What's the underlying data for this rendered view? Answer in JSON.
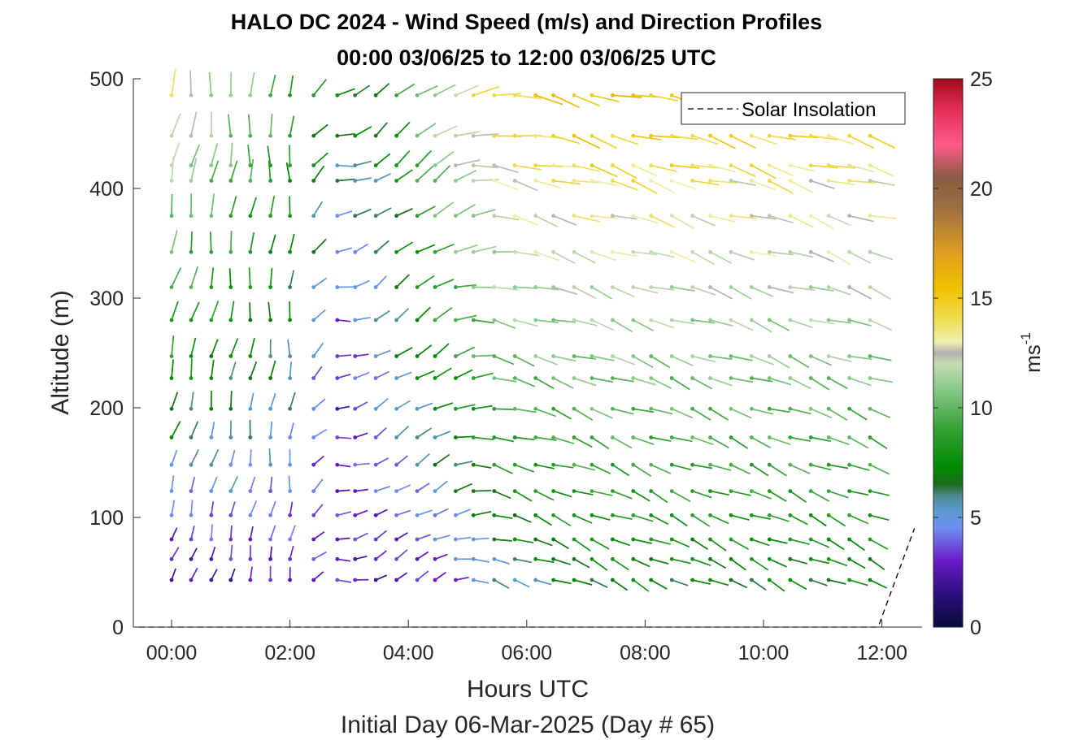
{
  "chart_data": {
    "type": "wind-barb-profile",
    "title": "HALO DC 2024 - Wind Speed (m/s) and Direction Profiles",
    "subtitle": "00:00 03/06/25 to 12:00 03/06/25  UTC",
    "xlabel": "Hours UTC",
    "xlabel2": "Initial Day 06-Mar-2025 (Day # 65)",
    "ylabel": "Altitude (m)",
    "xlim_hours": [
      -0.55,
      12.55
    ],
    "ylim": [
      0,
      500
    ],
    "x_ticks": [
      {
        "hour": 0,
        "label": "00:00"
      },
      {
        "hour": 2,
        "label": "02:00"
      },
      {
        "hour": 4,
        "label": "04:00"
      },
      {
        "hour": 6,
        "label": "06:00"
      },
      {
        "hour": 8,
        "label": "08:00"
      },
      {
        "hour": 10,
        "label": "10:00"
      },
      {
        "hour": 12,
        "label": "12:00"
      }
    ],
    "y_ticks": [
      0,
      100,
      200,
      300,
      400,
      500
    ],
    "colorbar": {
      "label": "ms",
      "label_superscript": "-1",
      "range": [
        0,
        25
      ],
      "ticks": [
        0,
        5,
        10,
        15,
        20,
        25
      ]
    },
    "legend": {
      "position": "top-right",
      "entries": [
        "Solar Insolation"
      ]
    },
    "solar_insolation": {
      "x": [
        -0.55,
        11.9,
        11.95,
        12.55
      ],
      "y": [
        0,
        0,
        2,
        90
      ]
    },
    "barb_levels_m": [
      43,
      62,
      80,
      102,
      124,
      148,
      173,
      199,
      227,
      247,
      280,
      310,
      342,
      375,
      407,
      421,
      448,
      485
    ],
    "sample_times_h": [
      0,
      0.33,
      0.67,
      1.0,
      1.33,
      1.67,
      2.0,
      2.4,
      2.8,
      3.1,
      3.45,
      3.8,
      4.15,
      4.45,
      4.8,
      5.1,
      5.45,
      5.8,
      6.15,
      6.45,
      6.8,
      7.1,
      7.45,
      7.8,
      8.1,
      8.45,
      8.8,
      9.1,
      9.45,
      9.8,
      10.1,
      10.45,
      10.8,
      11.1,
      11.45,
      11.8
    ],
    "note_speed_field": "wind speed (m/s) per level and time as printed by the colorbar scale",
    "speed_ms": {
      "hours": [
        0,
        2,
        2.8,
        3.5,
        4.5,
        5.5,
        7,
        12
      ],
      "low_levels": [
        2,
        3,
        3,
        2.5,
        3,
        5.5,
        7,
        7
      ],
      "mid_levels": [
        8,
        6,
        3,
        5,
        8,
        10,
        10.5,
        10.5
      ],
      "high_levels": [
        13,
        9,
        7,
        7,
        12,
        14.5,
        15.5,
        14.5
      ]
    },
    "direction_deg_from": {
      "hours": [
        0,
        2,
        2.8,
        3.5,
        4.5,
        5.5,
        7,
        12
      ],
      "values": [
        200,
        190,
        270,
        240,
        245,
        290,
        295,
        295
      ]
    }
  }
}
